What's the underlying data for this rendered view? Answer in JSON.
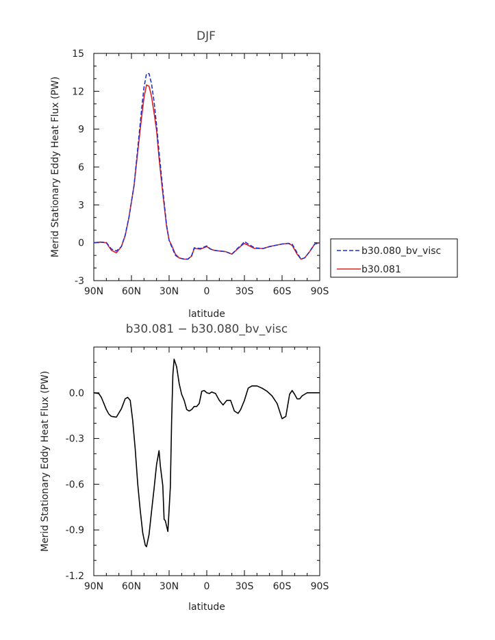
{
  "chart_data": [
    {
      "type": "line",
      "title": "DJF",
      "xlabel": "latitude",
      "ylabel": "Merid Stationary Eddy Heat Flux (PW)",
      "x_ticks": [
        "90N",
        "60N",
        "30N",
        "0",
        "30S",
        "60S",
        "90S"
      ],
      "y_ticks": [
        "-3",
        "0",
        "3",
        "6",
        "9",
        "12",
        "15"
      ],
      "xlim": [
        90,
        -90
      ],
      "ylim": [
        -3,
        15
      ],
      "legend": "right",
      "x": [
        90,
        85,
        80,
        76,
        72,
        68,
        65,
        62,
        58,
        55,
        52,
        50,
        48,
        46,
        44,
        42,
        40,
        38,
        35,
        32,
        30,
        28,
        25,
        22,
        18,
        15,
        12,
        10,
        5,
        0,
        -3,
        -6,
        -10,
        -15,
        -20,
        -25,
        -28,
        -30,
        -33,
        -38,
        -45,
        -50,
        -55,
        -60,
        -65,
        -68,
        -72,
        -75,
        -78,
        -82,
        -86,
        -90
      ],
      "series": [
        {
          "name": "b30.080_bv_visc",
          "color": "#1f2fd0",
          "style": "dashed",
          "values": [
            0,
            0.05,
            0.02,
            -0.5,
            -0.65,
            -0.3,
            0.6,
            2.0,
            4.5,
            7.5,
            10.5,
            12.3,
            13.4,
            13.4,
            12.6,
            11.2,
            9.3,
            7.2,
            4.2,
            1.4,
            0.2,
            -0.3,
            -1.0,
            -1.2,
            -1.3,
            -1.3,
            -1.0,
            -0.4,
            -0.45,
            -0.25,
            -0.5,
            -0.6,
            -0.65,
            -0.7,
            -0.9,
            -0.4,
            -0.15,
            0.1,
            -0.1,
            -0.4,
            -0.45,
            -0.3,
            -0.2,
            -0.1,
            -0.05,
            -0.1,
            -0.8,
            -1.3,
            -1.2,
            -0.7,
            -0.1,
            0
          ]
        },
        {
          "name": "b30.081",
          "color": "#e02020",
          "style": "solid",
          "values": [
            0,
            0.05,
            0.0,
            -0.6,
            -0.8,
            -0.3,
            0.55,
            2.0,
            4.5,
            7.2,
            9.9,
            11.5,
            12.5,
            12.4,
            11.6,
            10.3,
            8.9,
            6.7,
            3.9,
            1.3,
            0.2,
            -0.2,
            -0.9,
            -1.2,
            -1.3,
            -1.3,
            -1.05,
            -0.45,
            -0.5,
            -0.3,
            -0.5,
            -0.6,
            -0.65,
            -0.7,
            -0.9,
            -0.45,
            -0.2,
            -0.05,
            -0.2,
            -0.45,
            -0.45,
            -0.3,
            -0.2,
            -0.1,
            -0.05,
            -0.2,
            -0.9,
            -1.3,
            -1.2,
            -0.7,
            -0.1,
            0
          ]
        }
      ]
    },
    {
      "type": "line",
      "title": "b30.081 − b30.080_bv_visc",
      "xlabel": "latitude",
      "ylabel": "Merid Stationary Eddy Heat Flux (PW)",
      "x_ticks": [
        "90N",
        "60N",
        "30N",
        "0",
        "30S",
        "60S",
        "90S"
      ],
      "y_ticks": [
        "-1.2",
        "-0.9",
        "-0.6",
        "-0.3",
        "0.0"
      ],
      "xlim": [
        90,
        -90
      ],
      "ylim": [
        -1.2,
        0.3
      ],
      "x": [
        90,
        86,
        84,
        82,
        80,
        78,
        76,
        72,
        68,
        65,
        63,
        61,
        59,
        57,
        55,
        53,
        51,
        49,
        48,
        46,
        44,
        42,
        40,
        38,
        37,
        35,
        34,
        33,
        31,
        29,
        28,
        27,
        26,
        24,
        22,
        20,
        18,
        16,
        14,
        12,
        10,
        8,
        6,
        4,
        2,
        0,
        -2,
        -4,
        -7,
        -10,
        -13,
        -16,
        -19,
        -22,
        -25,
        -27,
        -30,
        -33,
        -36,
        -40,
        -44,
        -48,
        -52,
        -56,
        -60,
        -63,
        -66,
        -68,
        -70,
        -72,
        -74,
        -76,
        -78,
        -80,
        -84,
        -88,
        -90
      ],
      "series": [
        {
          "name": "",
          "color": "#000000",
          "style": "solid",
          "values": [
            0,
            -0.005,
            -0.03,
            -0.07,
            -0.11,
            -0.14,
            -0.155,
            -0.16,
            -0.105,
            -0.04,
            -0.03,
            -0.05,
            -0.18,
            -0.37,
            -0.6,
            -0.77,
            -0.92,
            -1.0,
            -1.01,
            -0.93,
            -0.78,
            -0.63,
            -0.47,
            -0.38,
            -0.48,
            -0.61,
            -0.83,
            -0.84,
            -0.91,
            -0.62,
            -0.18,
            0.12,
            0.22,
            0.17,
            0.06,
            -0.01,
            -0.05,
            -0.11,
            -0.12,
            -0.11,
            -0.09,
            -0.09,
            -0.07,
            0.01,
            0.015,
            0.0,
            -0.005,
            0.005,
            -0.005,
            -0.05,
            -0.08,
            -0.05,
            -0.05,
            -0.12,
            -0.135,
            -0.11,
            -0.05,
            0.03,
            0.045,
            0.045,
            0.03,
            0.01,
            -0.02,
            -0.07,
            -0.17,
            -0.155,
            -0.01,
            0.015,
            -0.01,
            -0.04,
            -0.04,
            -0.02,
            -0.01,
            0,
            0,
            0,
            0
          ]
        }
      ]
    }
  ]
}
